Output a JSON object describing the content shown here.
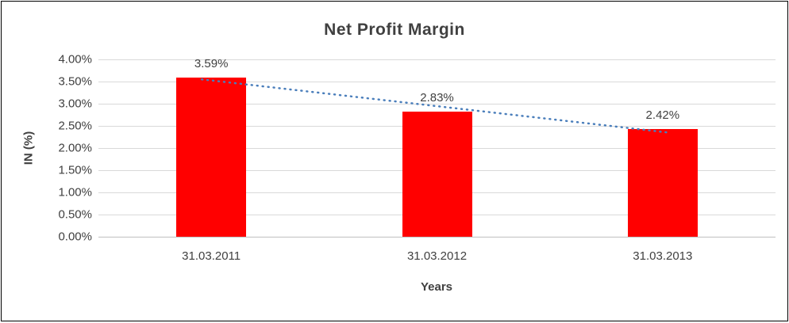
{
  "chart_data": {
    "type": "bar",
    "title": "Net Profit Margin",
    "categories": [
      "31.03.2011",
      "31.03.2012",
      "31.03.2013"
    ],
    "values": [
      3.59,
      2.83,
      2.42
    ],
    "data_labels": [
      "3.59%",
      "2.83%",
      "2.42%"
    ],
    "xlabel": "Years",
    "ylabel": "IN (%)",
    "ylim": [
      0,
      4
    ],
    "ytick_step": 0.5,
    "ytick_labels": [
      "0.00%",
      "0.50%",
      "1.00%",
      "1.50%",
      "2.00%",
      "2.50%",
      "3.00%",
      "3.50%",
      "4.00%"
    ],
    "grid": true,
    "legend": "none",
    "colors": {
      "bar": "#ff0000",
      "trendline": "#4a7ebb",
      "gridline": "#d9d9d9",
      "axis_line": "#bfbfbf",
      "text": "#404040"
    },
    "trendline": {
      "style": "dotted",
      "fit": "linear"
    }
  }
}
